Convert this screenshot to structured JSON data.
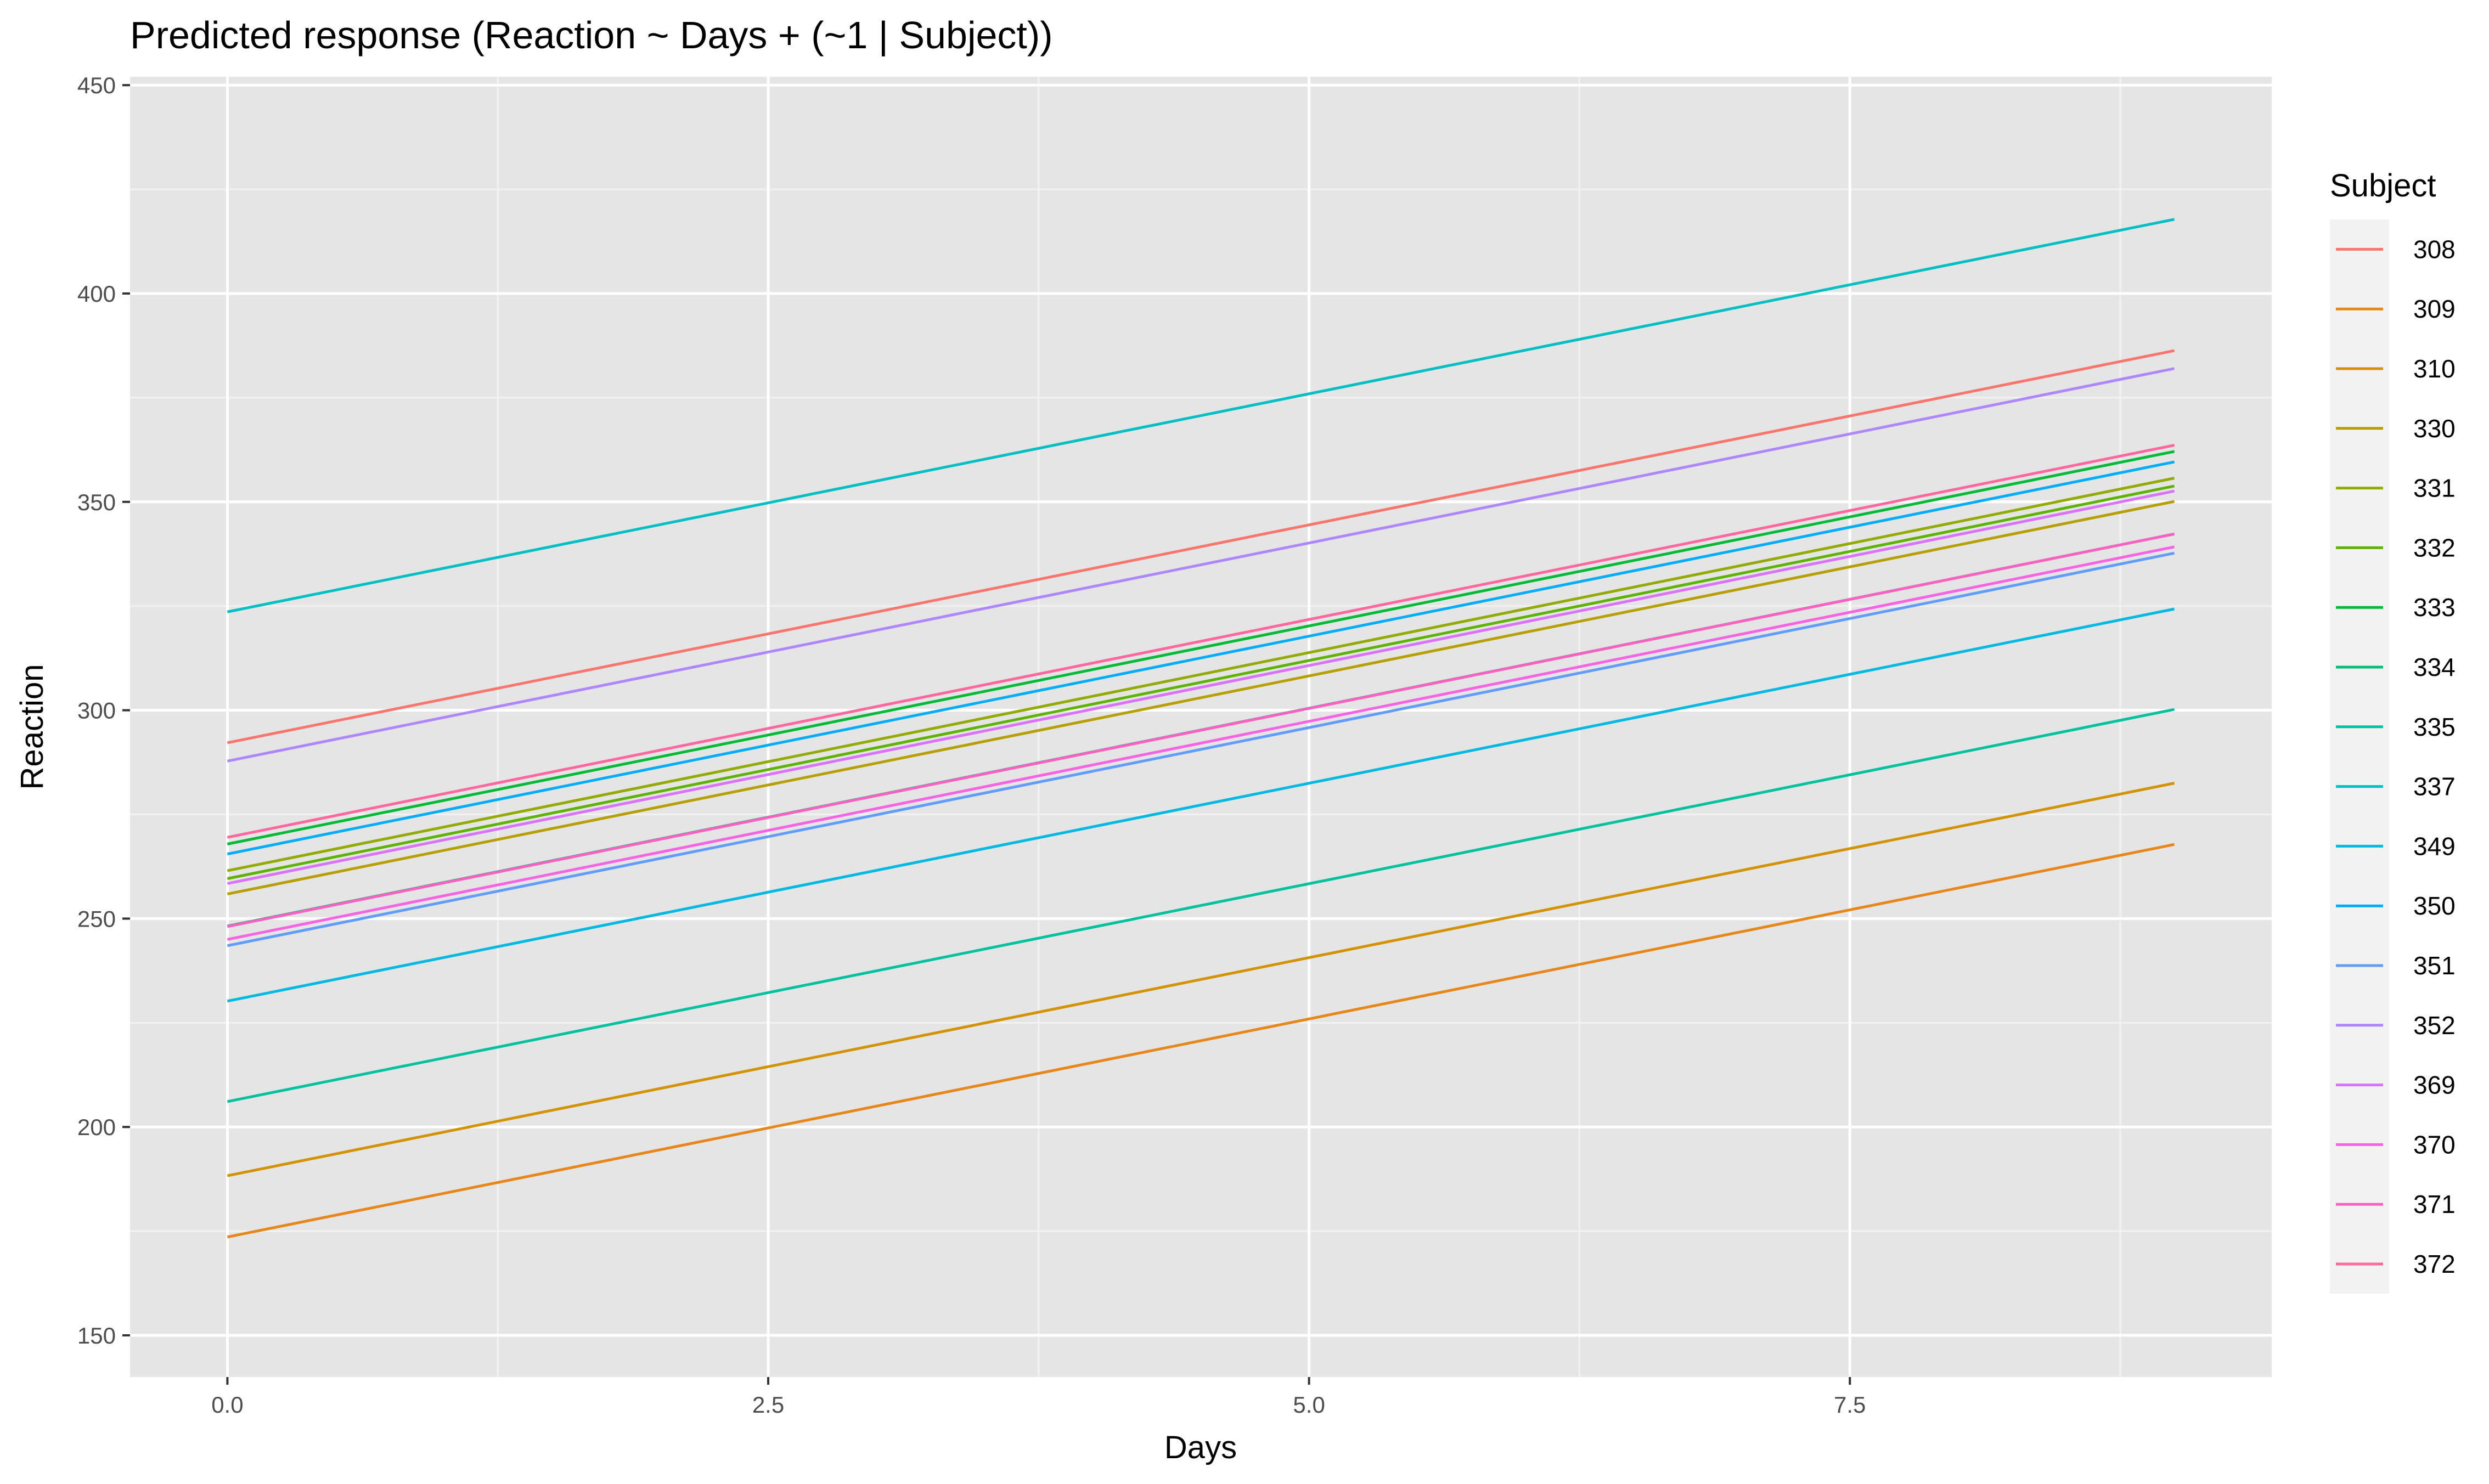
{
  "chart_data": {
    "type": "line",
    "title": "Predicted response (Reaction ~ Days + (~1 | Subject))",
    "xlabel": "Days",
    "ylabel": "Reaction",
    "xlim": [
      -0.45,
      9.45
    ],
    "ylim": [
      140,
      452
    ],
    "x_ticks": [
      0,
      2.5,
      5,
      7.5
    ],
    "x_tick_labels": [
      "0.0",
      "2.5",
      "5.0",
      "7.5"
    ],
    "y_ticks": [
      150,
      200,
      250,
      300,
      350,
      400,
      450
    ],
    "y_tick_labels": [
      "150",
      "200",
      "250",
      "300",
      "350",
      "400",
      "450"
    ],
    "grid": true,
    "legend": {
      "title": "Subject",
      "position": "right"
    },
    "x": [
      0,
      9
    ],
    "series": [
      {
        "name": "308",
        "color": "#F8766D",
        "values": [
          292.2,
          386.3
        ]
      },
      {
        "name": "309",
        "color": "#E7861B",
        "values": [
          173.6,
          267.8
        ]
      },
      {
        "name": "310",
        "color": "#D39200",
        "values": [
          188.3,
          282.5
        ]
      },
      {
        "name": "330",
        "color": "#B79F00",
        "values": [
          255.9,
          350.1
        ]
      },
      {
        "name": "331",
        "color": "#93AA00",
        "values": [
          261.5,
          355.7
        ]
      },
      {
        "name": "332",
        "color": "#5EB300",
        "values": [
          259.6,
          353.8
        ]
      },
      {
        "name": "333",
        "color": "#00BA38",
        "values": [
          267.9,
          362.1
        ]
      },
      {
        "name": "334",
        "color": "#00BF74",
        "values": [
          248.2,
          342.3
        ]
      },
      {
        "name": "335",
        "color": "#00C19F",
        "values": [
          206.1,
          300.2
        ]
      },
      {
        "name": "337",
        "color": "#00BFC4",
        "values": [
          323.6,
          417.8
        ]
      },
      {
        "name": "349",
        "color": "#00B9E3",
        "values": [
          230.2,
          324.3
        ]
      },
      {
        "name": "350",
        "color": "#00ADFA",
        "values": [
          265.5,
          359.6
        ]
      },
      {
        "name": "351",
        "color": "#619CFF",
        "values": [
          243.5,
          337.7
        ]
      },
      {
        "name": "352",
        "color": "#AE87FF",
        "values": [
          287.8,
          382.0
        ]
      },
      {
        "name": "369",
        "color": "#DB72FB",
        "values": [
          258.4,
          352.6
        ]
      },
      {
        "name": "370",
        "color": "#F564E3",
        "values": [
          245.0,
          339.2
        ]
      },
      {
        "name": "371",
        "color": "#FF61C3",
        "values": [
          248.1,
          342.3
        ]
      },
      {
        "name": "372",
        "color": "#FF689F",
        "values": [
          269.5,
          363.6
        ]
      }
    ]
  }
}
